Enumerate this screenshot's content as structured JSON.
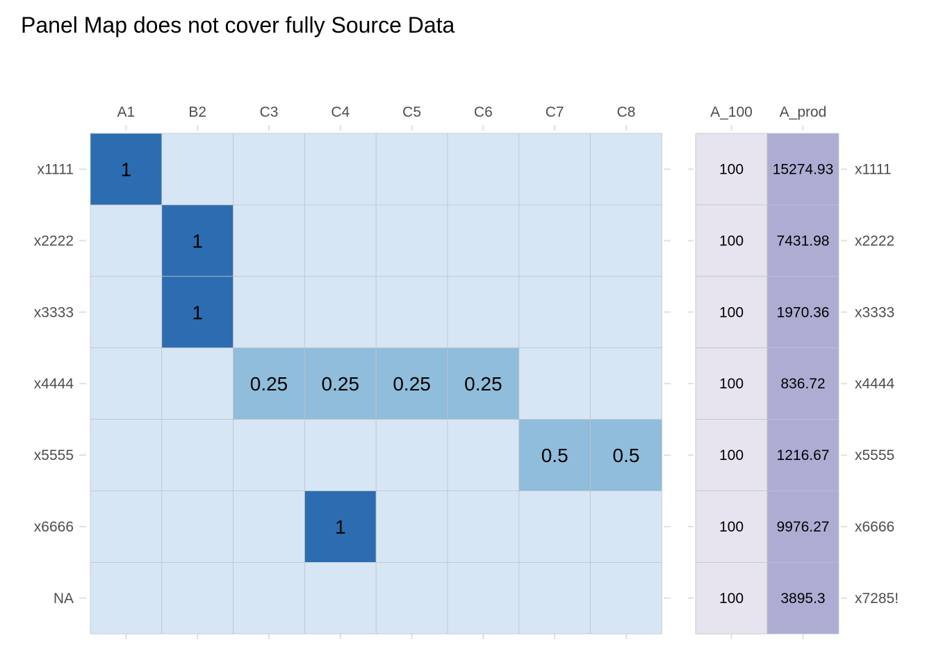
{
  "chart_data": {
    "type": "heatmap",
    "title": "Panel Map does not cover fully Source Data",
    "left_panel": {
      "columns": [
        "A1",
        "B2",
        "C3",
        "C4",
        "C5",
        "C6",
        "C7",
        "C8"
      ],
      "rows": [
        "x1111",
        "x2222",
        "x3333",
        "x4444",
        "x5555",
        "x6666",
        "NA"
      ],
      "cells": [
        {
          "row": "x1111",
          "col": "A1",
          "value": 1,
          "label": "1"
        },
        {
          "row": "x2222",
          "col": "B2",
          "value": 1,
          "label": "1"
        },
        {
          "row": "x3333",
          "col": "B2",
          "value": 1,
          "label": "1"
        },
        {
          "row": "x4444",
          "col": "C3",
          "value": 0.25,
          "label": "0.25"
        },
        {
          "row": "x4444",
          "col": "C4",
          "value": 0.25,
          "label": "0.25"
        },
        {
          "row": "x4444",
          "col": "C5",
          "value": 0.25,
          "label": "0.25"
        },
        {
          "row": "x4444",
          "col": "C6",
          "value": 0.25,
          "label": "0.25"
        },
        {
          "row": "x5555",
          "col": "C7",
          "value": 0.5,
          "label": "0.5"
        },
        {
          "row": "x5555",
          "col": "C8",
          "value": 0.5,
          "label": "0.5"
        },
        {
          "row": "x6666",
          "col": "C4",
          "value": 1,
          "label": "1"
        }
      ],
      "colors": {
        "empty": "#d7e6f5",
        "low": "#8fbddb",
        "high": "#2b6db0"
      }
    },
    "right_panel": {
      "columns": [
        "A_100",
        "A_prod"
      ],
      "rows": [
        "x1111",
        "x2222",
        "x3333",
        "x4444",
        "x5555",
        "x6666",
        "x7285!"
      ],
      "A_100": [
        100,
        100,
        100,
        100,
        100,
        100,
        100
      ],
      "A_100_labels": [
        "100",
        "100",
        "100",
        "100",
        "100",
        "100",
        "100"
      ],
      "A_prod": [
        15274.93,
        7431.98,
        1970.36,
        836.72,
        1216.67,
        9976.27,
        3895.3
      ],
      "A_prod_labels": [
        "15274.93",
        "7431.98",
        "1970.36",
        "836.72",
        "1216.67",
        "9976.27",
        "3895.3"
      ],
      "colors": {
        "A_100": "#e7e4ef",
        "A_prod": "#adadd4"
      }
    },
    "grid": true,
    "legend": "none"
  }
}
